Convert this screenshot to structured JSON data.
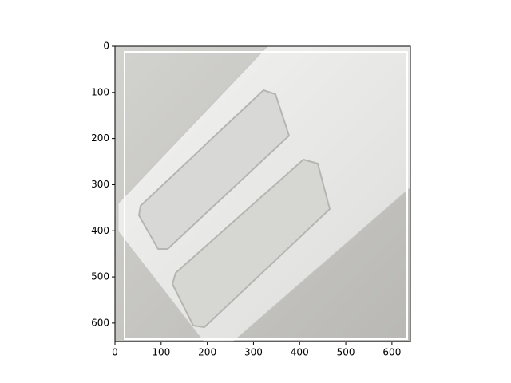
{
  "chart_data": {
    "type": "image",
    "xlim": [
      0,
      640
    ],
    "ylim": [
      640,
      0
    ],
    "xticks": [
      0,
      100,
      200,
      300,
      400,
      500,
      600
    ],
    "yticks": [
      0,
      100,
      200,
      300,
      400,
      500,
      600
    ]
  }
}
